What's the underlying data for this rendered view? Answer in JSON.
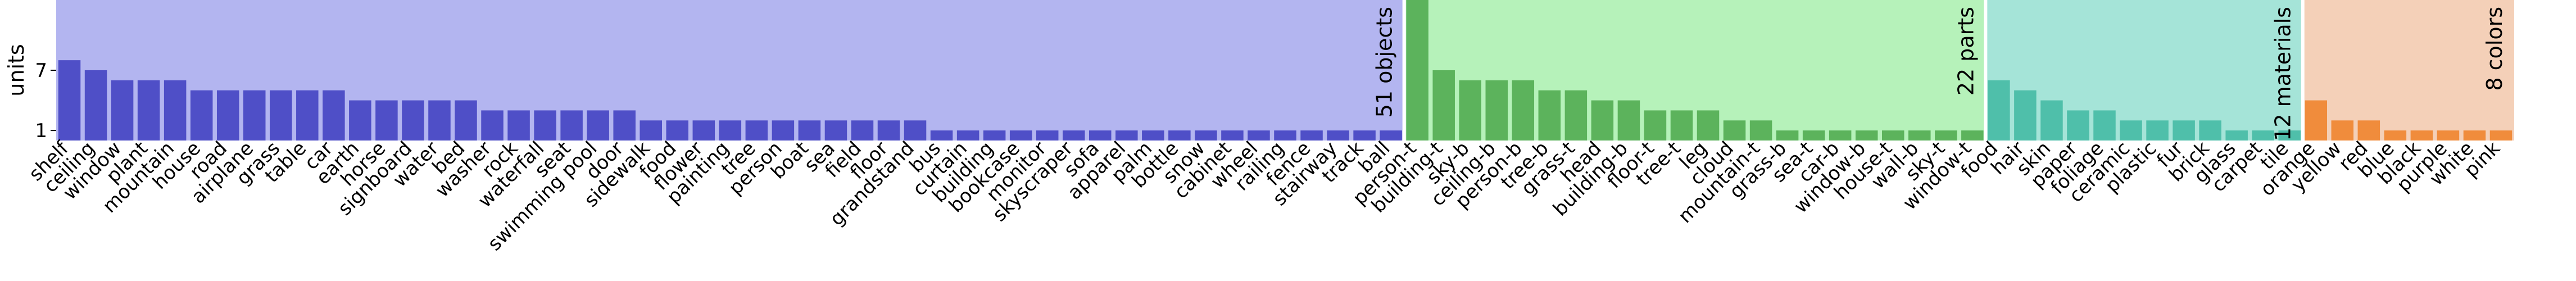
{
  "chart_data": {
    "type": "bar",
    "ylabel": "units",
    "y_ticks": [
      1,
      7
    ],
    "ylim": [
      0,
      14
    ],
    "groups": [
      {
        "name": "51 objects",
        "band_color": "#b3b5f0",
        "bar_color": "#4f4fc7",
        "categories": [
          "shelf",
          "ceiling",
          "window",
          "plant",
          "mountain",
          "house",
          "road",
          "airplane",
          "grass",
          "table",
          "car",
          "earth",
          "horse",
          "signboard",
          "water",
          "bed",
          "washer",
          "rock",
          "waterfall",
          "seat",
          "swimming pool",
          "door",
          "sidewalk",
          "food",
          "flower",
          "painting",
          "tree",
          "person",
          "boat",
          "sea",
          "field",
          "floor",
          "grandstand",
          "bus",
          "curtain",
          "building",
          "bookcase",
          "monitor",
          "skyscraper",
          "sofa",
          "apparel",
          "palm",
          "bottle",
          "snow",
          "cabinet",
          "wheel",
          "railing",
          "fence",
          "stairway",
          "track",
          "ball"
        ],
        "values": [
          8,
          7,
          6,
          6,
          6,
          5,
          5,
          5,
          5,
          5,
          5,
          4,
          4,
          4,
          4,
          4,
          3,
          3,
          3,
          3,
          3,
          3,
          2,
          2,
          2,
          2,
          2,
          2,
          2,
          2,
          2,
          2,
          2,
          1,
          1,
          1,
          1,
          1,
          1,
          1,
          1,
          1,
          1,
          1,
          1,
          1,
          1,
          1,
          1,
          1,
          1
        ]
      },
      {
        "name": "22 parts",
        "band_color": "#b6f2ba",
        "bar_color": "#5cb35c",
        "categories": [
          "person-t",
          "building-t",
          "sky-b",
          "ceiling-b",
          "person-b",
          "tree-b",
          "grass-t",
          "head",
          "building-b",
          "floor-t",
          "tree-t",
          "leg",
          "cloud",
          "mountain-t",
          "grass-b",
          "sea-t",
          "car-b",
          "window-b",
          "house-t",
          "wall-b",
          "sky-t",
          "window-t"
        ],
        "values": [
          14,
          7,
          6,
          6,
          6,
          5,
          5,
          4,
          4,
          3,
          3,
          3,
          2,
          2,
          1,
          1,
          1,
          1,
          1,
          1,
          1,
          1
        ]
      },
      {
        "name": "12 materials",
        "band_color": "#a5e4d8",
        "bar_color": "#4fbfaa",
        "categories": [
          "food",
          "hair",
          "skin",
          "paper",
          "foliage",
          "ceramic",
          "plastic",
          "fur",
          "brick",
          "glass",
          "carpet",
          "tile"
        ],
        "values": [
          6,
          5,
          4,
          3,
          3,
          2,
          2,
          2,
          2,
          1,
          1,
          1
        ]
      },
      {
        "name": "8 colors",
        "band_color": "#f4d0b8",
        "bar_color": "#f08c3c",
        "categories": [
          "orange",
          "yellow",
          "red",
          "blue",
          "black",
          "purple",
          "white",
          "pink"
        ],
        "values": [
          4,
          2,
          2,
          1,
          1,
          1,
          1,
          1
        ]
      }
    ]
  }
}
